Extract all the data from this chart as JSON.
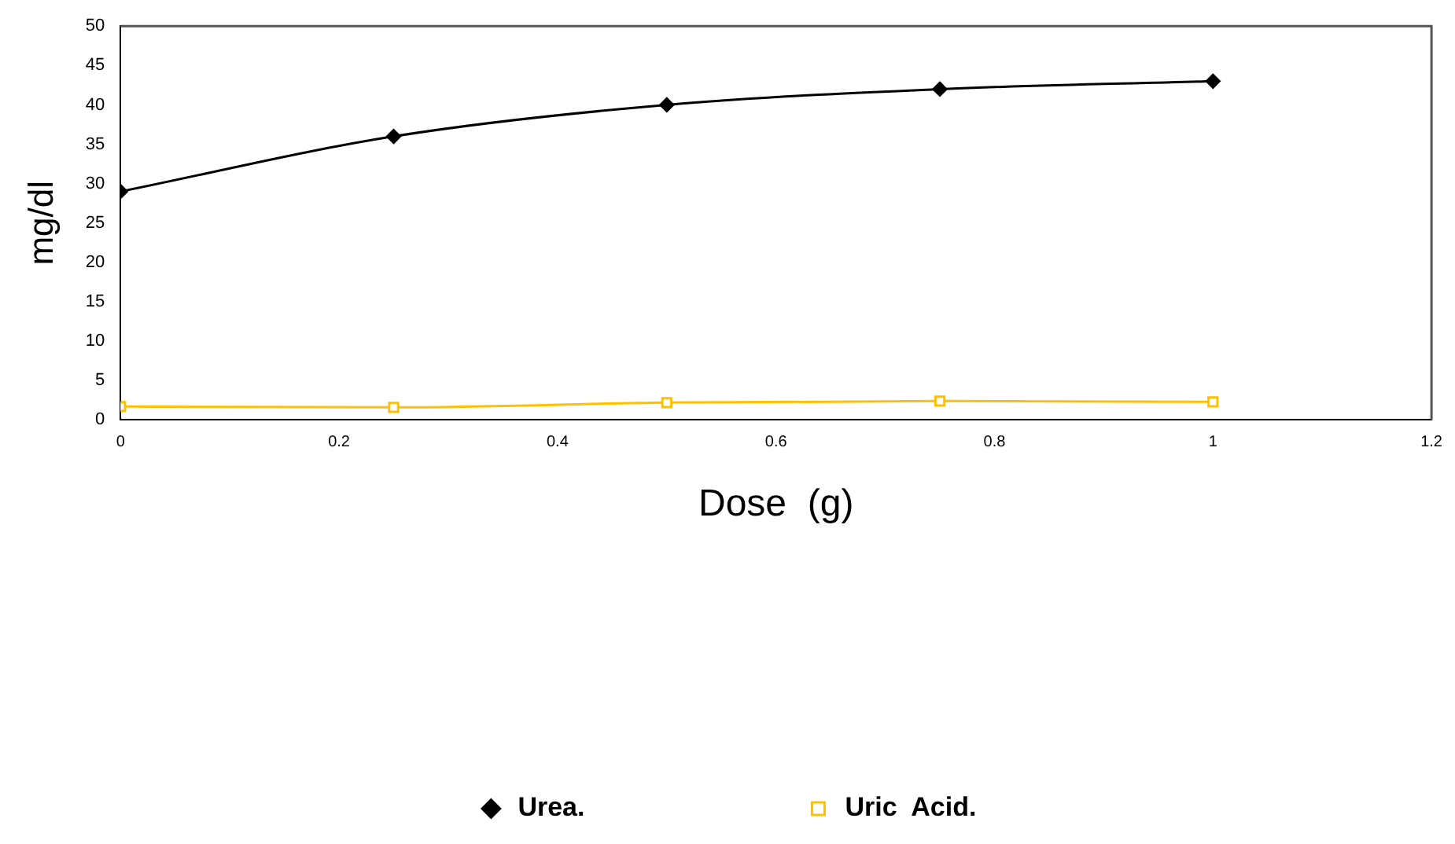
{
  "chart_data": {
    "type": "line",
    "xlabel": "Dose  (g)",
    "ylabel": "mg/dl",
    "x": [
      0,
      0.25,
      0.5,
      0.75,
      1
    ],
    "series": [
      {
        "name": "Urea.",
        "color": "#000000",
        "marker": "diamond",
        "values": [
          29,
          36,
          40,
          42,
          43
        ]
      },
      {
        "name": "Uric  Acid.",
        "color": "#ffc000",
        "marker": "square",
        "values": [
          1.7,
          1.6,
          2.2,
          2.4,
          2.3
        ]
      }
    ],
    "xlim": [
      0,
      1.2
    ],
    "xticks": [
      0,
      0.2,
      0.4,
      0.6,
      0.8,
      1,
      1.2
    ],
    "ylim": [
      0,
      50
    ],
    "yticks": [
      0,
      5,
      10,
      15,
      20,
      25,
      30,
      35,
      40,
      45,
      50
    ],
    "grid": false,
    "legend": "bottom"
  }
}
